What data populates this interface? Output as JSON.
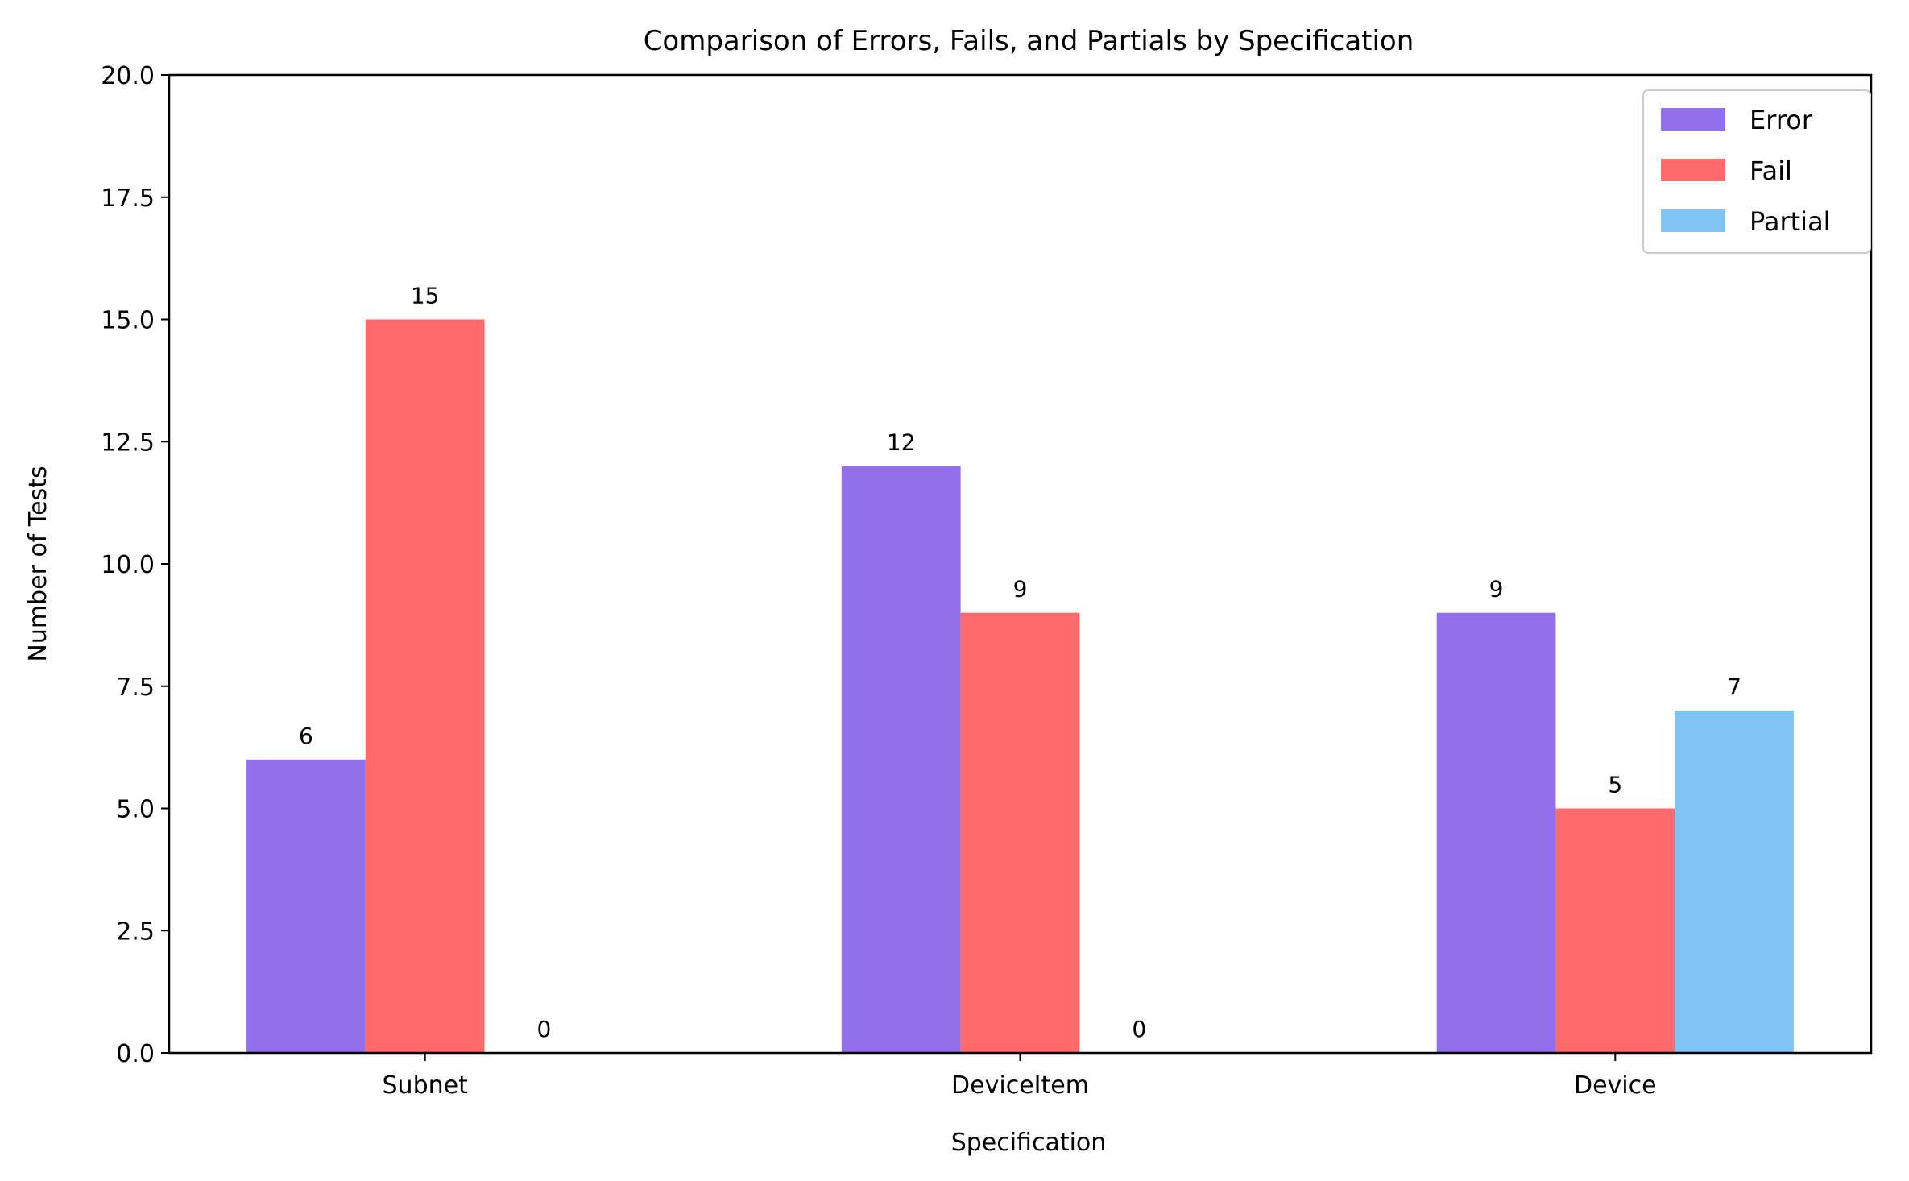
{
  "chart_data": {
    "type": "bar",
    "title": "Comparison of Errors, Fails, and Partials by Specification",
    "xlabel": "Specification",
    "ylabel": "Number of Tests",
    "categories": [
      "Subnet",
      "DeviceItem",
      "Device"
    ],
    "series": [
      {
        "name": "Error",
        "values": [
          6,
          12,
          9
        ],
        "color": "#9370EB"
      },
      {
        "name": "Fail",
        "values": [
          15,
          9,
          5
        ],
        "color": "#FF6A6A"
      },
      {
        "name": "Partial",
        "values": [
          0,
          0,
          7
        ],
        "color": "#80C4F5"
      }
    ],
    "ylim": [
      0,
      20
    ],
    "yticks": [
      "0.0",
      "2.5",
      "5.0",
      "7.5",
      "10.0",
      "12.5",
      "15.0",
      "17.5",
      "20.0"
    ],
    "legend": "top-right",
    "grid": false
  }
}
